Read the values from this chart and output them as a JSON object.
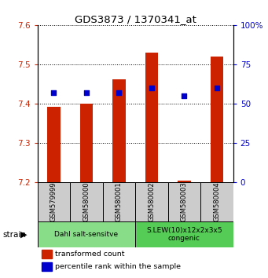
{
  "title": "GDS3873 / 1370341_at",
  "samples": [
    "GSM579999",
    "GSM580000",
    "GSM580001",
    "GSM580002",
    "GSM580003",
    "GSM580004"
  ],
  "red_values": [
    7.393,
    7.4,
    7.462,
    7.53,
    7.205,
    7.52
  ],
  "blue_values_pct": [
    57,
    57,
    57,
    60,
    55,
    60
  ],
  "y_min": 7.2,
  "y_max": 7.6,
  "y_ticks": [
    7.2,
    7.3,
    7.4,
    7.5,
    7.6
  ],
  "y2_ticks": [
    0,
    25,
    50,
    75,
    100
  ],
  "red_color": "#cc2200",
  "blue_color": "#0000cc",
  "bar_base": 7.2,
  "groups": [
    {
      "label": "Dahl salt-sensitve",
      "start": 0,
      "end": 3,
      "color": "#88dd88"
    },
    {
      "label": "S.LEW(10)x12x2x3x5\ncongenic",
      "start": 3,
      "end": 6,
      "color": "#55cc55"
    }
  ],
  "strain_label": "strain",
  "legend_red": "transformed count",
  "legend_blue": "percentile rank within the sample",
  "left_tick_color": "#cc2200",
  "right_tick_color": "#0000cc",
  "sample_box_color": "#cccccc",
  "bar_width": 0.4
}
